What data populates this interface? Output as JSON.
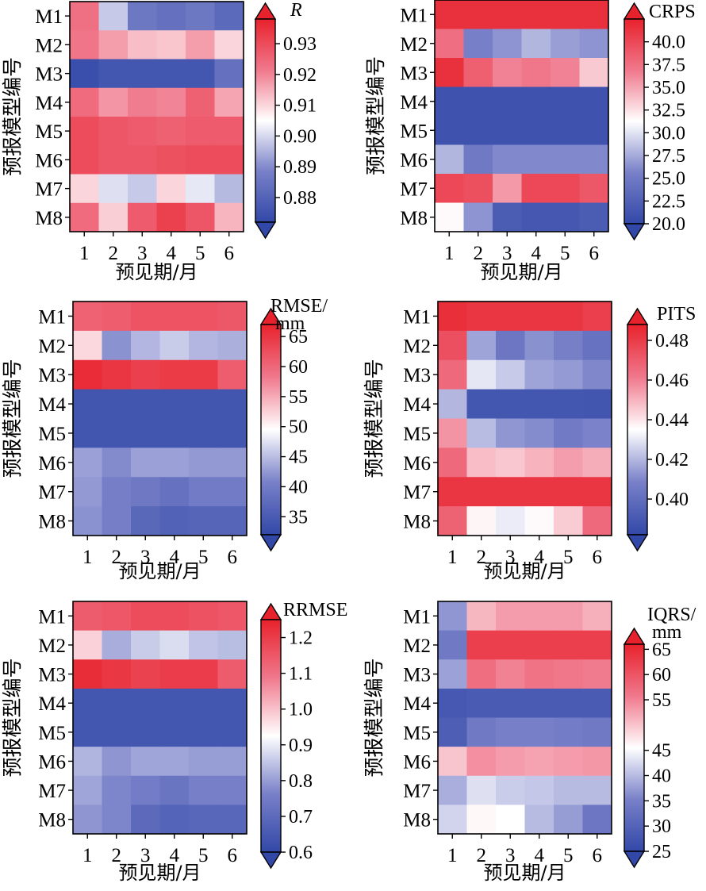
{
  "chart_data": [
    {
      "type": "heatmap",
      "title": "",
      "xlabel": "预见期/月",
      "ylabel": "预报模型编号",
      "x": [
        "1",
        "2",
        "3",
        "4",
        "5",
        "6"
      ],
      "y": [
        "M1",
        "M2",
        "M3",
        "M4",
        "M5",
        "M6",
        "M7",
        "M8"
      ],
      "colorbar": {
        "label": "R",
        "italic": true,
        "range": [
          0.872,
          0.938
        ],
        "ticks": [
          0.88,
          0.89,
          0.9,
          0.91,
          0.92,
          0.93
        ],
        "tick_labels": [
          "0.88",
          "0.89",
          "0.90",
          "0.91",
          "0.92",
          "0.93"
        ],
        "extend": "both"
      },
      "values": [
        [
          0.923,
          0.898,
          0.886,
          0.884,
          0.886,
          0.882
        ],
        [
          0.922,
          0.917,
          0.913,
          0.912,
          0.917,
          0.91
        ],
        [
          0.874,
          0.876,
          0.876,
          0.876,
          0.876,
          0.884
        ],
        [
          0.924,
          0.918,
          0.921,
          0.92,
          0.926,
          0.916
        ],
        [
          0.93,
          0.928,
          0.927,
          0.926,
          0.927,
          0.927
        ],
        [
          0.93,
          0.928,
          0.928,
          0.929,
          0.93,
          0.93
        ],
        [
          0.91,
          0.901,
          0.898,
          0.91,
          0.902,
          0.896
        ],
        [
          0.924,
          0.911,
          0.927,
          0.932,
          0.928,
          0.914
        ]
      ]
    },
    {
      "type": "heatmap",
      "title": "",
      "xlabel": "预见期/月",
      "ylabel": "预报模型编号",
      "x": [
        "1",
        "2",
        "3",
        "4",
        "5",
        "6"
      ],
      "y": [
        "M1",
        "M2",
        "M3",
        "M4",
        "M5",
        "M6",
        "M7",
        "M8"
      ],
      "colorbar": {
        "label": "CRPS",
        "range": [
          20,
          42.5
        ],
        "ticks": [
          20,
          22.5,
          25,
          27.5,
          30,
          32.5,
          35,
          37.5,
          40
        ],
        "tick_labels": [
          "20.0",
          "22.5",
          "25.0",
          "27.5",
          "30.0",
          "32.5",
          "35.0",
          "37.5",
          "40.0"
        ],
        "extend": "both"
      },
      "values": [
        [
          41.5,
          41.5,
          41.5,
          41.5,
          41.5,
          41.5
        ],
        [
          37.5,
          25.5,
          26.5,
          28.0,
          27.0,
          26.5
        ],
        [
          41.5,
          38.5,
          36.5,
          37.0,
          36.5,
          33.5
        ],
        [
          21.0,
          21.0,
          21.0,
          21.0,
          21.0,
          21.0
        ],
        [
          21.0,
          21.0,
          21.0,
          21.0,
          21.0,
          21.0
        ],
        [
          28.0,
          25.0,
          26.0,
          26.0,
          26.0,
          26.0
        ],
        [
          40.0,
          39.5,
          35.5,
          40.0,
          40.0,
          39.0
        ],
        [
          31.5,
          26.5,
          22.0,
          21.5,
          21.5,
          22.0
        ]
      ]
    },
    {
      "type": "heatmap",
      "title": "",
      "xlabel": "预见期/月",
      "ylabel": "预报模型编号",
      "x": [
        "1",
        "2",
        "3",
        "4",
        "5",
        "6"
      ],
      "y": [
        "M1",
        "M2",
        "M3",
        "M4",
        "M5",
        "M6",
        "M7",
        "M8"
      ],
      "colorbar": {
        "label": "RMSE/\nmm",
        "range": [
          32,
          67
        ],
        "ticks": [
          35,
          40,
          45,
          50,
          55,
          60,
          65
        ],
        "tick_labels": [
          "35",
          "40",
          "45",
          "50",
          "55",
          "60",
          "65"
        ],
        "extend": "both"
      },
      "values": [
        [
          60.5,
          61.0,
          62.0,
          62.0,
          62.0,
          61.5
        ],
        [
          52.0,
          42.0,
          44.5,
          46.0,
          44.5,
          44.0
        ],
        [
          66.0,
          65.0,
          64.0,
          64.5,
          64.5,
          61.0
        ],
        [
          34.0,
          34.0,
          34.0,
          34.0,
          34.0,
          34.0
        ],
        [
          34.0,
          34.0,
          34.0,
          34.0,
          34.0,
          34.0
        ],
        [
          43.0,
          41.5,
          43.0,
          43.0,
          42.5,
          42.5
        ],
        [
          42.5,
          40.5,
          39.5,
          38.5,
          40.0,
          40.0
        ],
        [
          42.0,
          40.5,
          37.0,
          36.0,
          36.5,
          36.5
        ]
      ]
    },
    {
      "type": "heatmap",
      "title": "",
      "xlabel": "预见期/月",
      "ylabel": "预报模型编号",
      "x": [
        "1",
        "2",
        "3",
        "4",
        "5",
        "6"
      ],
      "y": [
        "M1",
        "M2",
        "M3",
        "M4",
        "M5",
        "M6",
        "M7",
        "M8"
      ],
      "colorbar": {
        "label": "PITS",
        "range": [
          0.382,
          0.488
        ],
        "ticks": [
          0.4,
          0.42,
          0.44,
          0.46,
          0.48
        ],
        "tick_labels": [
          "0.40",
          "0.42",
          "0.44",
          "0.46",
          "0.48"
        ],
        "extend": "both"
      },
      "values": [
        [
          0.484,
          0.482,
          0.482,
          0.482,
          0.482,
          0.479
        ],
        [
          0.474,
          0.416,
          0.404,
          0.412,
          0.408,
          0.402
        ],
        [
          0.466,
          0.43,
          0.424,
          0.416,
          0.414,
          0.41
        ],
        [
          0.42,
          0.389,
          0.389,
          0.389,
          0.389,
          0.388
        ],
        [
          0.456,
          0.421,
          0.413,
          0.411,
          0.406,
          0.409
        ],
        [
          0.466,
          0.448,
          0.446,
          0.45,
          0.454,
          0.451
        ],
        [
          0.482,
          0.482,
          0.482,
          0.482,
          0.482,
          0.482
        ],
        [
          0.468,
          0.437,
          0.431,
          0.436,
          0.445,
          0.466
        ]
      ]
    },
    {
      "type": "heatmap",
      "title": "",
      "xlabel": "预见期/月",
      "ylabel": "预报模型编号",
      "x": [
        "1",
        "2",
        "3",
        "4",
        "5",
        "6"
      ],
      "y": [
        "M1",
        "M2",
        "M3",
        "M4",
        "M5",
        "M6",
        "M7",
        "M8"
      ],
      "colorbar": {
        "label": "RRMSE",
        "range": [
          0.6,
          1.25
        ],
        "ticks": [
          0.6,
          0.7,
          0.8,
          0.9,
          1.0,
          1.1,
          1.2
        ],
        "tick_labels": [
          "0.6",
          "0.7",
          "0.8",
          "0.9",
          "1.0",
          "1.1",
          "1.2"
        ],
        "extend": "both"
      },
      "values": [
        [
          1.14,
          1.15,
          1.17,
          1.17,
          1.16,
          1.15
        ],
        [
          0.98,
          0.82,
          0.86,
          0.88,
          0.85,
          0.84
        ],
        [
          1.23,
          1.21,
          1.19,
          1.2,
          1.2,
          1.14
        ],
        [
          0.64,
          0.64,
          0.64,
          0.64,
          0.64,
          0.64
        ],
        [
          0.64,
          0.64,
          0.64,
          0.64,
          0.64,
          0.64
        ],
        [
          0.83,
          0.79,
          0.81,
          0.81,
          0.8,
          0.8
        ],
        [
          0.81,
          0.77,
          0.75,
          0.73,
          0.76,
          0.76
        ],
        [
          0.79,
          0.77,
          0.7,
          0.68,
          0.69,
          0.69
        ]
      ]
    },
    {
      "type": "heatmap",
      "title": "",
      "xlabel": "预见期/月",
      "ylabel": "预报模型编号",
      "x": [
        "1",
        "2",
        "3",
        "4",
        "5",
        "6"
      ],
      "y": [
        "M1",
        "M2",
        "M3",
        "M4",
        "M5",
        "M6",
        "M7",
        "M8"
      ],
      "colorbar": {
        "label": "IQRS/\nmm",
        "range": [
          25,
          66
        ],
        "ticks": [
          25,
          30,
          35,
          40,
          45,
          55,
          60,
          65
        ],
        "tick_labels": [
          "25",
          "30",
          "35",
          "40",
          "45",
          "55",
          "60",
          "65"
        ],
        "extend": "both",
        "note": "printed tick labels as shown"
      },
      "values": [
        [
          37.0,
          51.0,
          53.0,
          53.0,
          53.0,
          51.5
        ],
        [
          34.0,
          62.5,
          62.5,
          62.5,
          62.5,
          62.5
        ],
        [
          38.0,
          57.0,
          55.0,
          56.5,
          56.0,
          55.5
        ],
        [
          28.0,
          28.5,
          28.5,
          28.5,
          28.5,
          28.5
        ],
        [
          29.0,
          34.0,
          35.0,
          35.0,
          34.5,
          34.0
        ],
        [
          50.0,
          54.0,
          53.0,
          52.5,
          53.0,
          53.5
        ],
        [
          39.0,
          43.0,
          41.5,
          41.0,
          40.0,
          40.0
        ],
        [
          42.0,
          46.0,
          45.5,
          40.0,
          37.5,
          33.5
        ]
      ]
    }
  ]
}
